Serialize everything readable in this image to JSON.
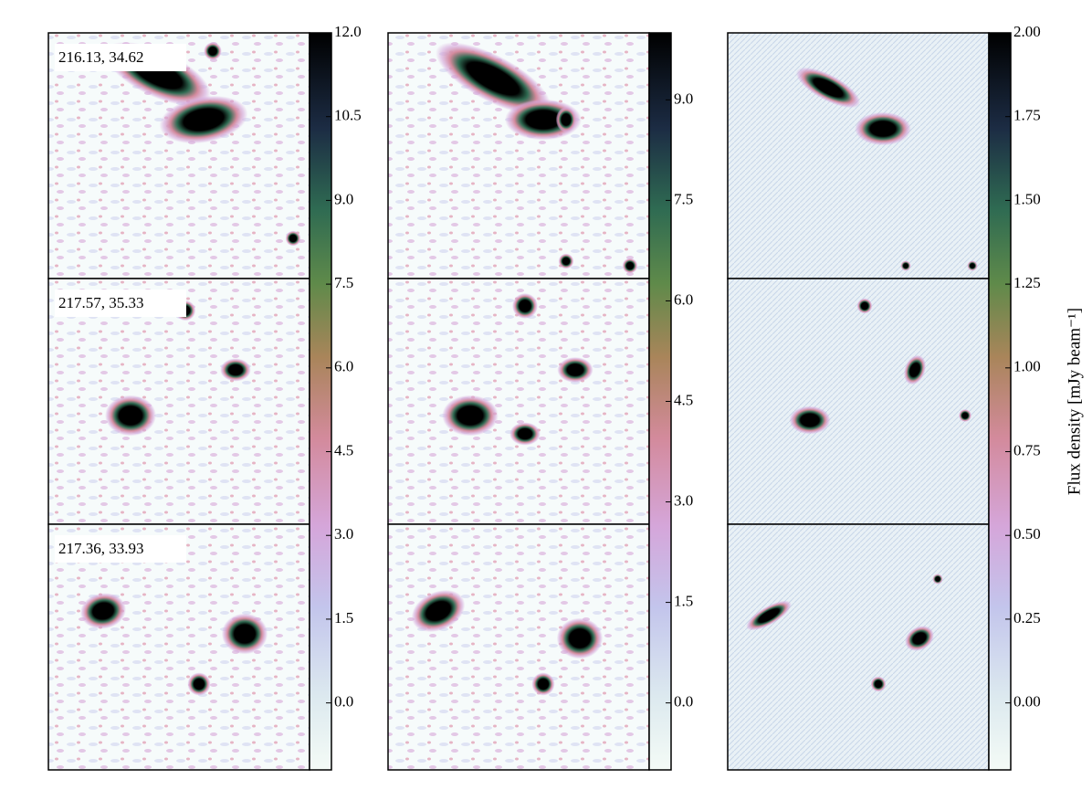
{
  "chart_data": [
    {
      "type": "image",
      "labels": [
        "216.13, 34.62",
        "217.57, 35.33",
        "217.36, 33.93"
      ],
      "ylim": [
        -1.2,
        12
      ],
      "yticks": [
        {
          "value": 0,
          "label": "0.0"
        },
        {
          "value": 1.5,
          "label": "1.5"
        },
        {
          "value": 3,
          "label": "3.0"
        },
        {
          "value": 4.5,
          "label": "4.5"
        },
        {
          "value": 6,
          "label": "6.0"
        },
        {
          "value": 7.5,
          "label": "7.5"
        },
        {
          "value": 9,
          "label": "9.0"
        },
        {
          "value": 10.5,
          "label": "10.5"
        },
        {
          "value": 12,
          "label": "12.0"
        }
      ]
    },
    {
      "type": "image",
      "ylim": [
        -1,
        10
      ],
      "yticks": [
        {
          "value": 0,
          "label": "0.0"
        },
        {
          "value": 1.5,
          "label": "1.5"
        },
        {
          "value": 3,
          "label": "3.0"
        },
        {
          "value": 4.5,
          "label": "4.5"
        },
        {
          "value": 6,
          "label": "6.0"
        },
        {
          "value": 7.5,
          "label": "7.5"
        },
        {
          "value": 9,
          "label": "9.0"
        }
      ]
    },
    {
      "type": "image",
      "ylabel": "Flux density [mJy beam⁻¹]",
      "ylim": [
        -0.2,
        2
      ],
      "yticks": [
        {
          "value": 0,
          "label": "0.00"
        },
        {
          "value": 0.25,
          "label": "0.25"
        },
        {
          "value": 0.5,
          "label": "0.50"
        },
        {
          "value": 0.75,
          "label": "0.75"
        },
        {
          "value": 1,
          "label": "1.00"
        },
        {
          "value": 1.25,
          "label": "1.25"
        },
        {
          "value": 1.5,
          "label": "1.50"
        },
        {
          "value": 1.75,
          "label": "1.75"
        },
        {
          "value": 2,
          "label": "2.00"
        }
      ]
    }
  ]
}
